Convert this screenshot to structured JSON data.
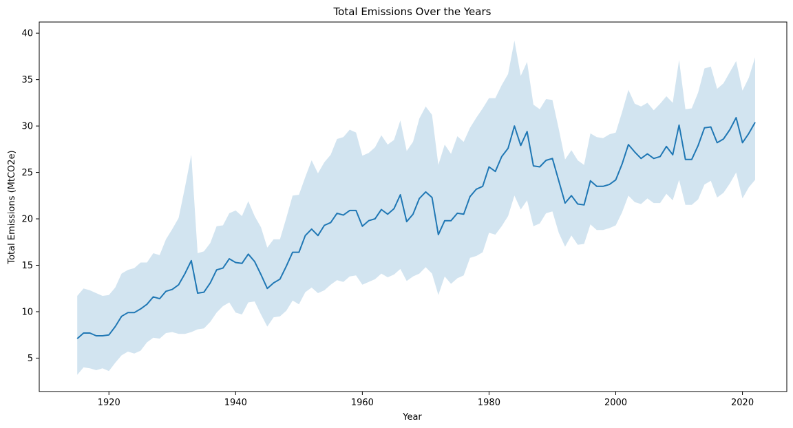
{
  "chart_data": {
    "type": "line",
    "title": "Total Emissions Over the Years",
    "xlabel": "Year",
    "ylabel": "Total Emissions (MtCO2e)",
    "xlim": [
      1909,
      2027
    ],
    "ylim": [
      1.4,
      41.2
    ],
    "x_ticks": [
      1920,
      1940,
      1960,
      1980,
      2000,
      2020
    ],
    "y_ticks": [
      5,
      10,
      15,
      20,
      25,
      30,
      35,
      40
    ],
    "grid": false,
    "legend": "none",
    "colors": {
      "line": "#1f77b4",
      "band": "#1f77b4",
      "band_opacity": 0.2
    },
    "series": [
      {
        "x": [
          1915,
          1916,
          1917,
          1918,
          1919,
          1920,
          1921,
          1922,
          1923,
          1924,
          1925,
          1926,
          1927,
          1928,
          1929,
          1930,
          1931,
          1932,
          1933,
          1934,
          1935,
          1936,
          1937,
          1938,
          1939,
          1940,
          1941,
          1942,
          1943,
          1944,
          1945,
          1946,
          1947,
          1948,
          1949,
          1950,
          1951,
          1952,
          1953,
          1954,
          1955,
          1956,
          1957,
          1958,
          1959,
          1960,
          1961,
          1962,
          1963,
          1964,
          1965,
          1966,
          1967,
          1968,
          1969,
          1970,
          1971,
          1972,
          1973,
          1974,
          1975,
          1976,
          1977,
          1978,
          1979,
          1980,
          1981,
          1982,
          1983,
          1984,
          1985,
          1986,
          1987,
          1988,
          1989,
          1990,
          1991,
          1992,
          1993,
          1994,
          1995,
          1996,
          1997,
          1998,
          1999,
          2000,
          2001,
          2002,
          2003,
          2004,
          2005,
          2006,
          2007,
          2008,
          2009,
          2010,
          2011,
          2012,
          2013,
          2014,
          2015,
          2016,
          2017,
          2018,
          2019,
          2020,
          2021,
          2022
        ],
        "y": [
          7.1,
          7.7,
          7.7,
          7.4,
          7.4,
          7.5,
          8.4,
          9.5,
          9.9,
          9.9,
          10.3,
          10.8,
          11.6,
          11.4,
          12.2,
          12.4,
          12.9,
          14.1,
          15.5,
          12.0,
          12.1,
          13.1,
          14.5,
          14.7,
          15.7,
          15.3,
          15.2,
          16.2,
          15.4,
          14.0,
          12.5,
          13.1,
          13.5,
          14.9,
          16.4,
          16.4,
          18.2,
          18.9,
          18.2,
          19.3,
          19.6,
          20.6,
          20.4,
          20.9,
          20.9,
          19.2,
          19.8,
          20.0,
          21.0,
          20.5,
          21.1,
          22.6,
          19.7,
          20.5,
          22.2,
          22.9,
          22.3,
          18.3,
          19.8,
          19.8,
          20.6,
          20.5,
          22.4,
          23.2,
          23.5,
          25.6,
          25.1,
          26.7,
          27.6,
          30.0,
          27.9,
          29.4,
          25.7,
          25.6,
          26.3,
          26.5,
          24.1,
          21.7,
          22.5,
          21.6,
          21.5,
          24.1,
          23.5,
          23.5,
          23.7,
          24.2,
          25.9,
          28.0,
          27.2,
          26.5,
          27.0,
          26.5,
          26.7,
          27.8,
          26.9,
          30.1,
          26.4,
          26.4,
          27.9,
          29.8,
          29.9,
          28.2,
          28.6,
          29.6,
          30.9,
          28.2,
          29.2,
          30.4
        ],
        "lower": [
          3.2,
          4.0,
          3.9,
          3.7,
          3.9,
          3.6,
          4.5,
          5.3,
          5.7,
          5.5,
          5.8,
          6.7,
          7.2,
          7.1,
          7.7,
          7.8,
          7.6,
          7.6,
          7.8,
          8.1,
          8.2,
          8.9,
          9.9,
          10.6,
          11.0,
          9.9,
          9.7,
          11.0,
          11.1,
          9.7,
          8.4,
          9.4,
          9.5,
          10.1,
          11.2,
          10.8,
          12.1,
          12.6,
          12.0,
          12.3,
          12.9,
          13.4,
          13.2,
          13.8,
          13.9,
          12.9,
          13.2,
          13.5,
          14.1,
          13.7,
          14.0,
          14.6,
          13.3,
          13.8,
          14.1,
          14.8,
          14.1,
          11.8,
          13.8,
          13.0,
          13.6,
          13.9,
          15.8,
          16.0,
          16.4,
          18.5,
          18.3,
          19.2,
          20.3,
          22.5,
          21.0,
          22.0,
          19.2,
          19.5,
          20.6,
          20.8,
          18.5,
          17.0,
          18.2,
          17.2,
          17.3,
          19.4,
          18.8,
          18.8,
          19.0,
          19.3,
          20.7,
          22.5,
          21.8,
          21.6,
          22.2,
          21.7,
          21.7,
          22.7,
          22.0,
          24.2,
          21.5,
          21.5,
          22.1,
          23.7,
          24.1,
          22.3,
          22.8,
          23.8,
          25.0,
          22.2,
          23.4,
          24.2
        ],
        "upper": [
          11.7,
          12.5,
          12.3,
          12.0,
          11.7,
          11.8,
          12.6,
          14.1,
          14.5,
          14.7,
          15.3,
          15.3,
          16.3,
          16.1,
          17.8,
          18.9,
          20.1,
          23.4,
          26.9,
          16.3,
          16.5,
          17.4,
          19.2,
          19.3,
          20.6,
          20.9,
          20.3,
          21.9,
          20.3,
          19.1,
          16.9,
          17.8,
          17.8,
          20.1,
          22.5,
          22.6,
          24.5,
          26.3,
          24.9,
          26.1,
          26.9,
          28.6,
          28.8,
          29.6,
          29.3,
          26.8,
          27.1,
          27.7,
          29.0,
          28.0,
          28.5,
          30.6,
          27.3,
          28.3,
          30.8,
          32.1,
          31.2,
          25.8,
          28.0,
          27.0,
          28.9,
          28.3,
          29.8,
          30.9,
          31.9,
          33.0,
          33.0,
          34.4,
          35.6,
          39.2,
          35.4,
          36.9,
          32.3,
          31.8,
          32.9,
          32.8,
          29.7,
          26.4,
          27.4,
          26.3,
          25.8,
          29.2,
          28.8,
          28.7,
          29.1,
          29.3,
          31.5,
          33.9,
          32.4,
          32.1,
          32.5,
          31.7,
          32.4,
          33.2,
          32.5,
          37.1,
          31.8,
          31.9,
          33.6,
          36.2,
          36.4,
          34.0,
          34.6,
          35.8,
          37.0,
          33.8,
          35.2,
          37.4
        ]
      }
    ]
  }
}
